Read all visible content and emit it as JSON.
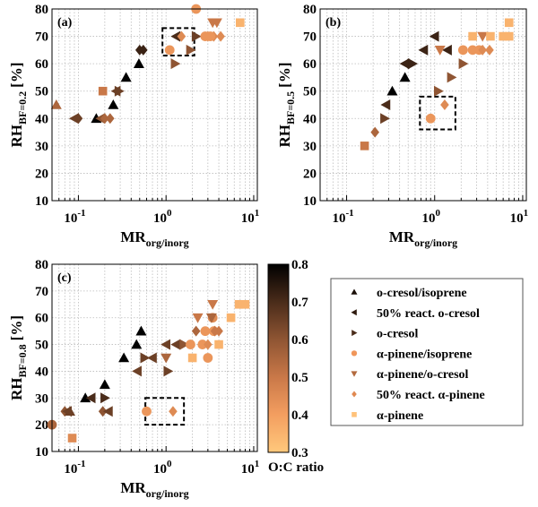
{
  "chart_data": [
    {
      "type": "scatter",
      "panel_label": "(a)",
      "ylabel_main": "RH",
      "ylabel_sub": "BF=0.2",
      "ylabel_unit": "[%]",
      "xlabel_main": "MR",
      "xlabel_sub": "org/inorg",
      "xscale": "log",
      "xlim": [
        0.05,
        11
      ],
      "ylim": [
        10,
        80
      ],
      "xticks": [
        {
          "v": 0.1,
          "base": "10",
          "exp": "-1"
        },
        {
          "v": 1,
          "base": "10",
          "exp": "0"
        },
        {
          "v": 10,
          "base": "10",
          "exp": "1"
        }
      ],
      "yticks": [
        10,
        20,
        30,
        40,
        50,
        60,
        70,
        80
      ],
      "grid": true,
      "highlight_box": {
        "x": [
          0.91,
          2.1
        ],
        "y": [
          63,
          73
        ]
      },
      "points": [
        [
          0,
          0.056,
          45,
          0.55
        ],
        [
          0,
          0.16,
          40,
          0.8
        ],
        [
          0,
          0.25,
          45,
          0.8
        ],
        [
          0,
          0.35,
          55,
          0.8
        ],
        [
          0,
          0.49,
          60,
          0.8
        ],
        [
          1,
          0.09,
          40,
          0.65
        ],
        [
          1,
          0.27,
          50,
          0.65
        ],
        [
          1,
          1.3,
          70,
          0.7
        ],
        [
          1,
          0.18,
          40,
          0.6
        ],
        [
          5,
          0.1,
          40,
          0.65
        ],
        [
          5,
          0.5,
          65,
          0.72
        ],
        [
          5,
          0.55,
          65,
          0.72
        ],
        [
          5,
          0.2,
          40,
          0.55
        ],
        [
          5,
          0.23,
          40,
          0.55
        ],
        [
          5,
          1.5,
          70,
          0.45
        ],
        [
          5,
          3,
          70,
          0.45
        ],
        [
          5,
          3.5,
          70,
          0.45
        ],
        [
          5,
          4.2,
          70,
          0.45
        ],
        [
          2,
          0.29,
          50,
          0.65
        ],
        [
          2,
          1.27,
          60,
          0.6
        ],
        [
          2,
          1.9,
          65,
          0.6
        ],
        [
          2,
          2.2,
          70,
          0.65
        ],
        [
          6,
          0.19,
          50,
          0.5
        ],
        [
          6,
          7,
          75,
          0.35
        ],
        [
          3,
          1.1,
          65,
          0.42
        ],
        [
          3,
          2.2,
          80,
          0.42
        ],
        [
          3,
          2.8,
          70,
          0.42
        ],
        [
          3,
          3.2,
          70,
          0.42
        ],
        [
          4,
          3.4,
          75,
          0.5
        ],
        [
          4,
          3.8,
          75,
          0.5
        ]
      ]
    },
    {
      "type": "scatter",
      "panel_label": "(b)",
      "ylabel_main": "RH",
      "ylabel_sub": "BF=0.5",
      "ylabel_unit": "[%]",
      "xlabel_main": "MR",
      "xlabel_sub": "org/inorg",
      "xscale": "log",
      "xlim": [
        0.05,
        11
      ],
      "ylim": [
        10,
        80
      ],
      "xticks": [
        {
          "v": 0.1,
          "base": "10",
          "exp": "-1"
        },
        {
          "v": 1,
          "base": "10",
          "exp": "0"
        },
        {
          "v": 10,
          "base": "10",
          "exp": "1"
        }
      ],
      "yticks": [
        10,
        20,
        30,
        40,
        50,
        60,
        70,
        80
      ],
      "grid": true,
      "highlight_box": {
        "x": [
          0.68,
          1.72
        ],
        "y": [
          36,
          48
        ]
      },
      "points": [
        [
          6,
          0.16,
          30,
          0.5
        ],
        [
          5,
          0.21,
          35,
          0.55
        ],
        [
          2,
          0.27,
          40,
          0.65
        ],
        [
          1,
          0.28,
          45,
          0.7
        ],
        [
          0,
          0.33,
          50,
          0.8
        ],
        [
          0,
          0.46,
          55,
          0.8
        ],
        [
          1,
          0.46,
          60,
          0.72
        ],
        [
          5,
          0.5,
          60,
          0.72
        ],
        [
          2,
          0.56,
          60,
          0.72
        ],
        [
          1,
          0.75,
          65,
          0.72
        ],
        [
          1,
          1.0,
          70,
          0.72
        ],
        [
          1,
          1.4,
          65,
          0.72
        ],
        [
          4,
          1.15,
          65,
          0.5
        ],
        [
          2,
          1.1,
          50,
          0.6
        ],
        [
          2,
          1.55,
          55,
          0.6
        ],
        [
          2,
          2.1,
          60,
          0.6
        ],
        [
          3,
          0.9,
          40,
          0.42
        ],
        [
          5,
          1.3,
          45,
          0.45
        ],
        [
          3,
          2.1,
          65,
          0.42
        ],
        [
          3,
          2.7,
          65,
          0.42
        ],
        [
          3,
          3.2,
          65,
          0.42
        ],
        [
          5,
          3.5,
          65,
          0.45
        ],
        [
          5,
          4.2,
          65,
          0.45
        ],
        [
          4,
          3.5,
          70,
          0.5
        ],
        [
          6,
          2.7,
          70,
          0.35
        ],
        [
          6,
          4.3,
          70,
          0.35
        ],
        [
          6,
          6,
          70,
          0.35
        ],
        [
          6,
          7,
          70,
          0.35
        ],
        [
          6,
          7,
          75,
          0.35
        ]
      ]
    },
    {
      "type": "scatter",
      "panel_label": "(c)",
      "ylabel_main": "RH",
      "ylabel_sub": "BF=0.8",
      "ylabel_unit": "[%]",
      "xlabel_main": "MR",
      "xlabel_sub": "org/inorg",
      "xscale": "log",
      "xlim": [
        0.05,
        11
      ],
      "ylim": [
        10,
        80
      ],
      "xticks": [
        {
          "v": 0.1,
          "base": "10",
          "exp": "-1"
        },
        {
          "v": 1,
          "base": "10",
          "exp": "0"
        },
        {
          "v": 10,
          "base": "10",
          "exp": "1"
        }
      ],
      "yticks": [
        10,
        20,
        30,
        40,
        50,
        60,
        70,
        80
      ],
      "grid": true,
      "highlight_box": {
        "x": [
          0.58,
          1.6
        ],
        "y": [
          20,
          30
        ]
      },
      "points": [
        [
          3,
          0.05,
          20,
          0.55
        ],
        [
          5,
          0.07,
          25,
          0.6
        ],
        [
          1,
          0.075,
          25,
          0.65
        ],
        [
          0,
          0.08,
          25,
          0.65
        ],
        [
          6,
          0.085,
          15,
          0.45
        ],
        [
          0,
          0.12,
          30,
          0.8
        ],
        [
          1,
          0.14,
          30,
          0.7
        ],
        [
          2,
          0.2,
          30,
          0.7
        ],
        [
          0,
          0.2,
          35,
          0.8
        ],
        [
          5,
          0.19,
          25,
          0.6
        ],
        [
          1,
          0.22,
          25,
          0.65
        ],
        [
          0,
          0.33,
          45,
          0.8
        ],
        [
          0,
          0.46,
          50,
          0.8
        ],
        [
          0,
          0.52,
          55,
          0.8
        ],
        [
          1,
          0.47,
          40,
          0.65
        ],
        [
          2,
          0.57,
          45,
          0.65
        ],
        [
          1,
          0.7,
          45,
          0.65
        ],
        [
          2,
          1.05,
          40,
          0.65
        ],
        [
          4,
          1.0,
          45,
          0.55
        ],
        [
          1,
          1.0,
          50,
          0.65
        ],
        [
          1,
          1.3,
          50,
          0.65
        ],
        [
          2,
          1.6,
          50,
          0.6
        ],
        [
          3,
          1.9,
          50,
          0.42
        ],
        [
          3,
          2.6,
          50,
          0.42
        ],
        [
          5,
          3,
          50,
          0.45
        ],
        [
          6,
          4,
          50,
          0.35
        ],
        [
          6,
          2,
          45,
          0.35
        ],
        [
          3,
          3,
          45,
          0.42
        ],
        [
          5,
          2.2,
          55,
          0.55
        ],
        [
          3,
          2.8,
          55,
          0.42
        ],
        [
          3,
          3.5,
          55,
          0.42
        ],
        [
          5,
          3.6,
          55,
          0.5
        ],
        [
          5,
          4,
          55,
          0.5
        ],
        [
          4,
          2.3,
          60,
          0.5
        ],
        [
          3,
          3.4,
          60,
          0.45
        ],
        [
          4,
          3.3,
          60,
          0.55
        ],
        [
          4,
          3.4,
          65,
          0.5
        ],
        [
          6,
          5.5,
          60,
          0.35
        ],
        [
          6,
          6.8,
          65,
          0.35
        ],
        [
          6,
          8,
          65,
          0.35
        ],
        [
          3,
          0.6,
          25,
          0.42
        ],
        [
          5,
          1.2,
          25,
          0.45
        ]
      ]
    }
  ],
  "legend": {
    "placement": "right-middle",
    "items": [
      {
        "label": "o-cresol/isoprene",
        "marker": "triangle-up",
        "color": "#1a0f08"
      },
      {
        "label": "50% react. o-cresol",
        "marker": "triangle-left",
        "color": "#2e1a0e"
      },
      {
        "label": "o-cresol",
        "marker": "triangle-right",
        "color": "#4a2c1a"
      },
      {
        "label": "α-pinene/isoprene",
        "marker": "circle",
        "color": "#f0965a"
      },
      {
        "label": "α-pinene/o-cresol",
        "marker": "triangle-down",
        "color": "#b36a3e"
      },
      {
        "label": "50% react. α-pinene",
        "marker": "diamond",
        "color": "#e08850"
      },
      {
        "label": "α-pinene",
        "marker": "square",
        "color": "#ffc27a"
      }
    ]
  },
  "colorbar": {
    "label": "O:C ratio",
    "range": [
      0.3,
      0.8
    ],
    "ticks": [
      "0.3",
      "0.4",
      "0.5",
      "0.6",
      "0.7",
      "0.8"
    ],
    "stops": [
      "#ffc87c",
      "#f39e60",
      "#c97848",
      "#8f5533",
      "#4a2c1a",
      "#000000"
    ]
  }
}
